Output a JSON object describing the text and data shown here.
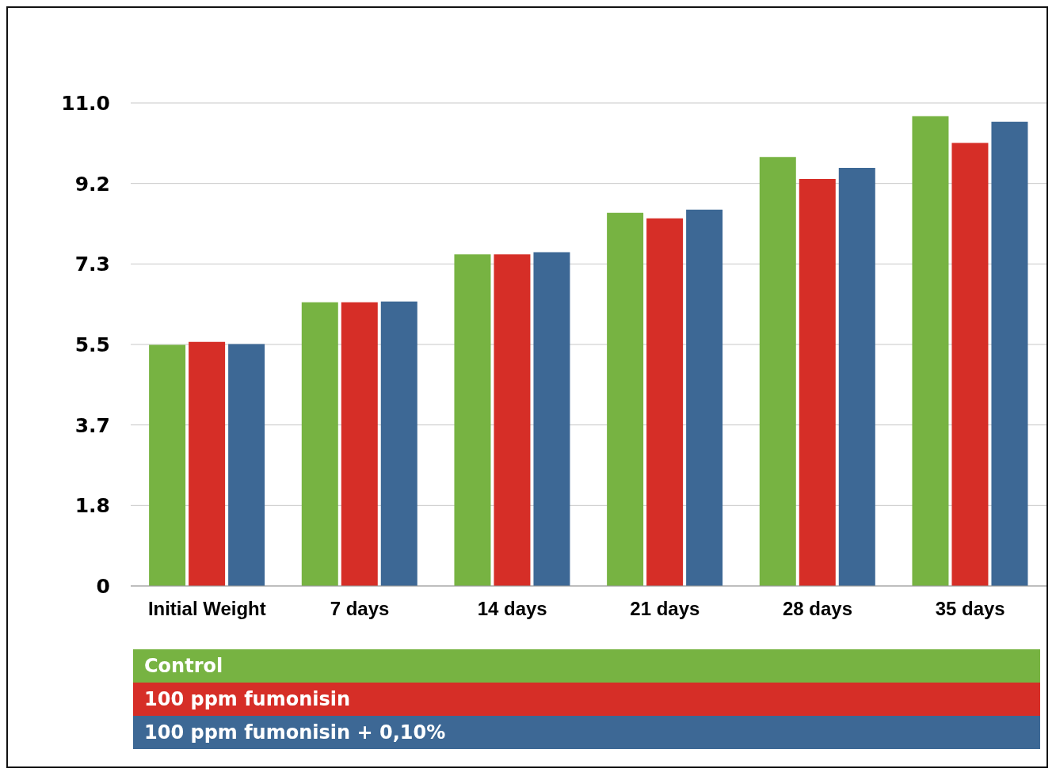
{
  "chart_data": {
    "type": "bar",
    "categories": [
      "Initial Weight",
      "7 days",
      "14 days",
      "21 days",
      "28 days",
      "35 days"
    ],
    "series": [
      {
        "name": "Control",
        "color": "#77b342",
        "values": [
          5.49,
          6.46,
          7.55,
          8.5,
          9.77,
          10.7
        ]
      },
      {
        "name": "100 ppm fumonisin",
        "color": "#d62e27",
        "values": [
          5.56,
          6.46,
          7.55,
          8.37,
          9.27,
          10.09
        ]
      },
      {
        "name": "100 ppm fumonisin + 0,10%",
        "color": "#3d6895",
        "values": [
          5.51,
          6.48,
          7.6,
          8.57,
          9.52,
          10.57
        ]
      }
    ],
    "ylim": [
      0,
      11
    ],
    "yticks": [
      0,
      {
        "value": 1.8333,
        "label": "1.8"
      },
      {
        "value": 3.6667,
        "label": "3.7"
      },
      5.5,
      {
        "value": 7.3333,
        "label": "7.3"
      },
      {
        "value": 9.1667,
        "label": "9.2"
      },
      {
        "value": 11,
        "label": "11.0"
      }
    ],
    "grid": "y",
    "legend": "bottom"
  }
}
